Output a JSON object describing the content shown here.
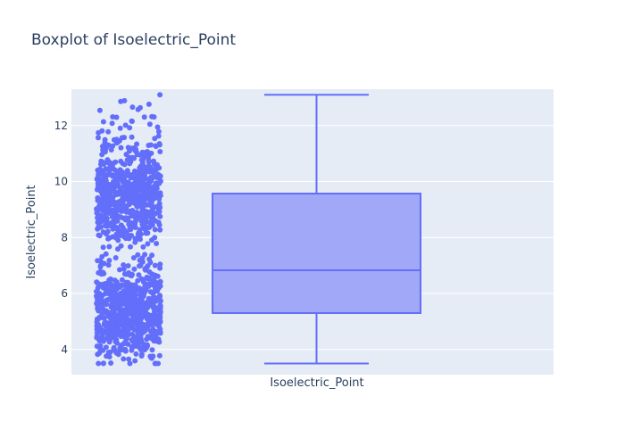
{
  "chart_data": {
    "type": "box",
    "title": "Boxplot of Isoelectric_Point",
    "xlabel": "",
    "ylabel": "Isoelectric_Point",
    "category": "Isoelectric_Point",
    "ylim": [
      3.1,
      13.3
    ],
    "yticks": [
      4,
      6,
      8,
      10,
      12
    ],
    "grid": true,
    "show_points": "all",
    "box": {
      "min": 3.5,
      "q1": 5.3,
      "median": 6.83,
      "q3": 9.57,
      "max": 13.1
    },
    "points_count": 1400,
    "points_seed": 7,
    "colors": {
      "marker": "#636efa",
      "box_fill": "#a2a8f8",
      "box_line": "#636efa",
      "plot_bg": "#e5ecf6",
      "grid": "#ffffff",
      "text": "#2a3f5f"
    }
  }
}
